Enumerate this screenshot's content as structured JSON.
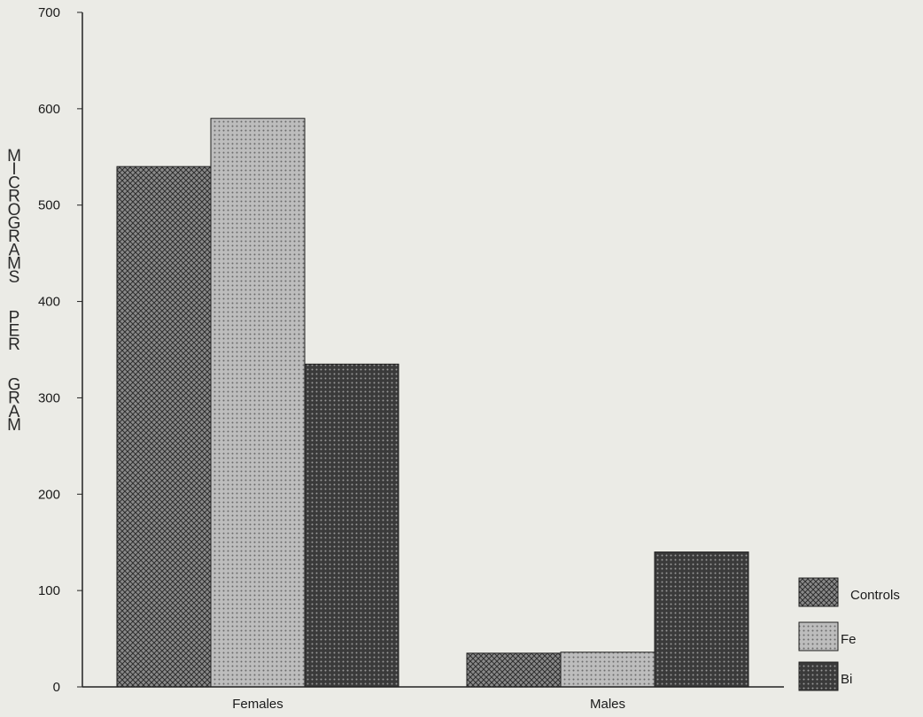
{
  "chart_data": {
    "type": "bar",
    "title": "",
    "xlabel": "",
    "ylabel": "MICROGRAMS PER GRAM",
    "categories": [
      "Females",
      "Males"
    ],
    "series": [
      {
        "name": "Controls",
        "values": [
          540,
          35
        ]
      },
      {
        "name": "Fe",
        "values": [
          590,
          36
        ]
      },
      {
        "name": "Bi",
        "values": [
          335,
          140
        ]
      }
    ],
    "ylim": [
      0,
      700
    ],
    "yticks": [
      0,
      100,
      200,
      300,
      400,
      500,
      600,
      700
    ],
    "grid": false,
    "legend_position": "bottom-right",
    "colors": {
      "Controls": "#6f6f6f",
      "Fe": "#a8a8a8",
      "Bi": "#2f2f2f",
      "background": "#ebebe6",
      "axis": "#222222"
    }
  }
}
